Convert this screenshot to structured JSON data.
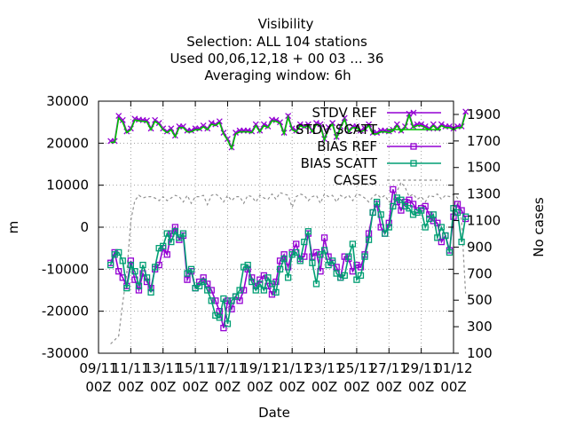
{
  "chart_data": {
    "type": "line",
    "title": [
      "Visibility",
      "Selection: ALL     104 stations",
      "Used  00,06,12,18 + 00 03 ... 36",
      "Averaging window:  6h"
    ],
    "xlabel": "Date",
    "ylabel": "m",
    "y2label": "No cases",
    "ylim": [
      -30000,
      30000
    ],
    "y2lim": [
      100,
      2000
    ],
    "yticks": [
      "-30000",
      "-20000",
      "-10000",
      "0",
      "10000",
      "20000",
      "30000"
    ],
    "y2ticks": [
      "100",
      "300",
      "500",
      "700",
      "900",
      "1100",
      "1300",
      "1500",
      "1700",
      "1900"
    ],
    "xticks": [
      {
        "line1": "09/11",
        "line2": "00Z"
      },
      {
        "line1": "11/11",
        "line2": "00Z"
      },
      {
        "line1": "13/11",
        "line2": "00Z"
      },
      {
        "line1": "15/11",
        "line2": "00Z"
      },
      {
        "line1": "17/11",
        "line2": "00Z"
      },
      {
        "line1": "19/11",
        "line2": "00Z"
      },
      {
        "line1": "21/11",
        "line2": "00Z"
      },
      {
        "line1": "23/11",
        "line2": "00Z"
      },
      {
        "line1": "25/11",
        "line2": "00Z"
      },
      {
        "line1": "27/11",
        "line2": "00Z"
      },
      {
        "line1": "29/11",
        "line2": "00Z"
      },
      {
        "line1": "01/12",
        "line2": "00Z"
      }
    ],
    "x_unit": "days since 09/11 00Z",
    "x": [
      0.75,
      1.0,
      1.25,
      1.5,
      1.75,
      2.0,
      2.25,
      2.5,
      2.75,
      3.0,
      3.25,
      3.5,
      3.75,
      4.0,
      4.25,
      4.5,
      4.75,
      5.0,
      5.25,
      5.5,
      5.75,
      6.0,
      6.25,
      6.5,
      6.75,
      7.0,
      7.25,
      7.5,
      7.75,
      8.0,
      8.25,
      8.5,
      8.75,
      9.0,
      9.25,
      9.5,
      9.75,
      10.0,
      10.25,
      10.5,
      10.75,
      11.0,
      11.25,
      11.5,
      11.75,
      12.0,
      12.25,
      12.5,
      12.75,
      13.0,
      13.25,
      13.5,
      13.75,
      14.0,
      14.25,
      14.5,
      14.75,
      15.0,
      15.25,
      15.5,
      15.75,
      16.0,
      16.25,
      16.5,
      16.75,
      17.0,
      17.25,
      17.5,
      17.75,
      18.0,
      18.25,
      18.5,
      18.75,
      19.0,
      19.25,
      19.5,
      19.75,
      20.0,
      20.25,
      20.5,
      20.75,
      21.0,
      21.25,
      21.5,
      21.75,
      22.0,
      22.25,
      22.5,
      22.75
    ],
    "series": [
      {
        "name": "STDV REF",
        "color": "#9400d3",
        "marker": "x",
        "values": [
          20500,
          20500,
          26500,
          25500,
          22800,
          23500,
          25800,
          25600,
          25500,
          25400,
          23500,
          25500,
          24800,
          23500,
          22800,
          23500,
          21800,
          24000,
          24000,
          23000,
          23000,
          23500,
          23500,
          24200,
          23500,
          24800,
          24500,
          25200,
          22500,
          21000,
          19000,
          22500,
          23000,
          23000,
          23000,
          22800,
          24500,
          23000,
          24500,
          24000,
          25600,
          25500,
          25000,
          22500,
          26500,
          23500,
          23000,
          24500,
          24000,
          24500,
          23000,
          24800,
          24500,
          21000,
          23800,
          24800,
          21500,
          24000,
          26000,
          23000,
          24000,
          24000,
          23000,
          23500,
          24500,
          22500,
          22500,
          23000,
          23000,
          22800,
          23200,
          24500,
          23000,
          24000,
          27000,
          24000,
          24500,
          24500,
          24000,
          23500,
          24500,
          23500,
          24500,
          24000,
          24000,
          23500,
          24000,
          24000,
          27500
        ]
      },
      {
        "name": "STDV SCATT",
        "color": "#00c000",
        "marker": "none",
        "values": [
          20200,
          20200,
          26000,
          25000,
          22500,
          23200,
          25500,
          25300,
          25200,
          25100,
          23200,
          25200,
          24500,
          23200,
          22500,
          23200,
          21500,
          23700,
          23700,
          22700,
          22700,
          23200,
          23200,
          23900,
          23200,
          24500,
          24200,
          24900,
          22200,
          20700,
          18700,
          22200,
          22700,
          22700,
          22700,
          22500,
          24200,
          22700,
          24200,
          23700,
          25300,
          25200,
          24700,
          22200,
          26200,
          23200,
          22700,
          24200,
          23700,
          24200,
          22700,
          24500,
          24200,
          20700,
          23500,
          24500,
          21200,
          23700,
          25700,
          22700,
          23700,
          23700,
          22700,
          23200,
          24200,
          22200,
          22200,
          22700,
          22700,
          22500,
          22900,
          24200,
          22700,
          23700,
          26700,
          23700,
          24200,
          24200,
          23700,
          23200,
          24200,
          23200,
          24200,
          23700,
          23700,
          23200,
          23700,
          23700,
          27000
        ]
      },
      {
        "name": "BIAS REF",
        "color": "#9400d3",
        "marker": "square",
        "values": [
          -8500,
          -6000,
          -10500,
          -12000,
          -14000,
          -8000,
          -12500,
          -15000,
          -11000,
          -13000,
          -14500,
          -10000,
          -9000,
          -5000,
          -6500,
          -1500,
          0,
          -3000,
          -2000,
          -12500,
          -10500,
          -14500,
          -13000,
          -12000,
          -13500,
          -15000,
          -17500,
          -20000,
          -24000,
          -17500,
          -19500,
          -16500,
          -17500,
          -15000,
          -10000,
          -12000,
          -14000,
          -12500,
          -11500,
          -14000,
          -16000,
          -13000,
          -8000,
          -6500,
          -9500,
          -6000,
          -4000,
          -7500,
          -7000,
          -1500,
          -7000,
          -6000,
          -10500,
          -2500,
          -7000,
          -8500,
          -9500,
          -12000,
          -7000,
          -7500,
          -10500,
          -9000,
          -9500,
          -6500,
          -1500,
          3500,
          5500,
          0,
          -1500,
          1000,
          9000,
          6000,
          4000,
          6000,
          6500,
          5500,
          4000,
          4500,
          5000,
          3000,
          1500,
          1000,
          -3500,
          -2000,
          -5500,
          2500,
          5500,
          4000,
          2000
        ]
      },
      {
        "name": "BIAS SCATT",
        "color": "#009e73",
        "marker": "square",
        "values": [
          -9000,
          -6500,
          -6000,
          -8000,
          -14500,
          -9000,
          -10500,
          -14000,
          -9000,
          -12000,
          -15500,
          -9500,
          -5000,
          -4500,
          -1500,
          -3500,
          -1000,
          -2500,
          -1500,
          -11000,
          -10000,
          -14500,
          -14000,
          -13000,
          -15000,
          -17500,
          -21000,
          -21500,
          -17000,
          -23000,
          -17500,
          -16500,
          -15000,
          -9500,
          -9000,
          -13000,
          -15000,
          -13500,
          -15000,
          -12000,
          -13500,
          -15500,
          -10000,
          -7500,
          -12000,
          -6500,
          -6000,
          -8000,
          -3500,
          -1000,
          -8500,
          -13500,
          -6500,
          -5500,
          -9000,
          -8000,
          -11000,
          -12000,
          -11500,
          -7000,
          -4000,
          -12500,
          -11500,
          -7000,
          -3000,
          3500,
          6000,
          3000,
          -1500,
          0,
          5000,
          7000,
          6500,
          5000,
          4500,
          3000,
          3500,
          4000,
          0,
          2000,
          3000,
          -2500,
          0,
          -2000,
          -6000,
          4500,
          3500,
          -3500,
          2500
        ]
      },
      {
        "name": "CASES",
        "color": "#909090",
        "marker": "none",
        "axis": "y2",
        "values": [
          170,
          200,
          230,
          480,
          700,
          1100,
          1250,
          1290,
          1270,
          1280,
          1280,
          1270,
          1250,
          1280,
          1250,
          1270,
          1290,
          1280,
          1240,
          1290,
          1230,
          1280,
          1280,
          1290,
          1220,
          1290,
          1300,
          1280,
          1240,
          1290,
          1250,
          1280,
          1280,
          1230,
          1290,
          1280,
          1240,
          1290,
          1270,
          1260,
          1300,
          1260,
          1310,
          1300,
          1290,
          1200,
          1280,
          1300,
          1290,
          1250,
          1280,
          1290,
          1230,
          1300,
          1280,
          1290,
          1240,
          1290,
          1270,
          1290,
          1250,
          1300,
          1290,
          1270,
          1240,
          1280,
          1300,
          1270,
          1290,
          1240,
          1250,
          1320,
          1390,
          1350,
          1280,
          1300,
          1260,
          1280,
          1240,
          1290,
          1280,
          1300,
          1260,
          1290,
          1280,
          1300,
          1270,
          1100,
          550
        ]
      }
    ],
    "legend": {
      "position": "top-right",
      "entries": [
        "STDV REF",
        "STDV SCATT",
        "BIAS REF",
        "BIAS SCATT",
        "CASES"
      ]
    },
    "grid": true
  }
}
